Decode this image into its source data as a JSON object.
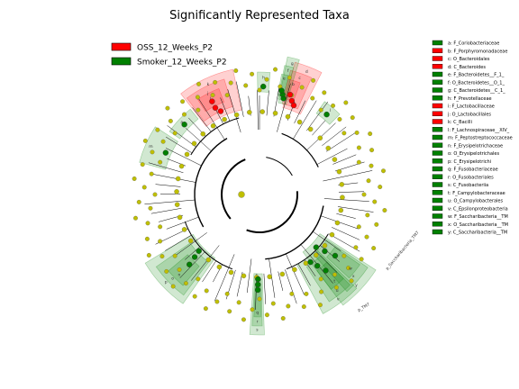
{
  "chart_data": {
    "type": "cladogram",
    "title": "Significantly Represented Taxa",
    "groups": [
      {
        "name": "OSS_12_Weeks_P2",
        "color": "#ff0000"
      },
      {
        "name": "Smoker_12_Weeks_P2",
        "color": "#008000"
      }
    ],
    "neutral_node_color": "#bfbf00",
    "clades": [
      {
        "letter": "a",
        "label": "a: F_Coriobacteriaceae",
        "group": "Smoker_12_Weeks_P2"
      },
      {
        "letter": "b",
        "label": "b: F_Porphyromonadaceae",
        "group": "OSS_12_Weeks_P2"
      },
      {
        "letter": "c",
        "label": "c: O_Bacteroidales",
        "group": "OSS_12_Weeks_P2"
      },
      {
        "letter": "d",
        "label": "d: C_Bacteroides",
        "group": "OSS_12_Weeks_P2"
      },
      {
        "letter": "e",
        "label": "e: F_Bacteroidetes__F_1_",
        "group": "Smoker_12_Weeks_P2"
      },
      {
        "letter": "f",
        "label": "f: O_Bacteroidetes__O_1_",
        "group": "Smoker_12_Weeks_P2"
      },
      {
        "letter": "g",
        "label": "g: C_Bacteroidetes__C_1_",
        "group": "Smoker_12_Weeks_P2"
      },
      {
        "letter": "h",
        "label": "h: F_Prevotellaceae",
        "group": "Smoker_12_Weeks_P2"
      },
      {
        "letter": "i",
        "label": "i: F_Lactobacillaceae",
        "group": "OSS_12_Weeks_P2"
      },
      {
        "letter": "j",
        "label": "j: O_Lactobacillales",
        "group": "OSS_12_Weeks_P2"
      },
      {
        "letter": "k",
        "label": "k: C_Bacilli",
        "group": "OSS_12_Weeks_P2"
      },
      {
        "letter": "l",
        "label": "l: F_Lachnospiraceae__XIV_",
        "group": "Smoker_12_Weeks_P2"
      },
      {
        "letter": "m",
        "label": "m: F_Peptostreptococcaceae",
        "group": "Smoker_12_Weeks_P2"
      },
      {
        "letter": "n",
        "label": "n: F_Erysipelotrichaceae",
        "group": "Smoker_12_Weeks_P2"
      },
      {
        "letter": "o",
        "label": "o: O_Erysipelotrichales",
        "group": "Smoker_12_Weeks_P2"
      },
      {
        "letter": "p",
        "label": "p: C_Erysipelotrichi",
        "group": "Smoker_12_Weeks_P2"
      },
      {
        "letter": "q",
        "label": "q: F_Fusobacteriaceae",
        "group": "Smoker_12_Weeks_P2"
      },
      {
        "letter": "r",
        "label": "r: O_Fusobacteriales",
        "group": "Smoker_12_Weeks_P2"
      },
      {
        "letter": "s",
        "label": "s: C_Fusobacteriia",
        "group": "Smoker_12_Weeks_P2"
      },
      {
        "letter": "t",
        "label": "t: F_Campylobacteraceae",
        "group": "Smoker_12_Weeks_P2"
      },
      {
        "letter": "u",
        "label": "u: O_Campylobacterales",
        "group": "Smoker_12_Weeks_P2"
      },
      {
        "letter": "v",
        "label": "v: C_Epsilonproteobacteria",
        "group": "Smoker_12_Weeks_P2"
      },
      {
        "letter": "w",
        "label": "w: F_Saccharibacteria__TM",
        "group": "Smoker_12_Weeks_P2"
      },
      {
        "letter": "x",
        "label": "x: O_Saccharibacteria__TM",
        "group": "Smoker_12_Weeks_P2"
      },
      {
        "letter": "y",
        "label": "y: C_Saccharibacteria__TM",
        "group": "Smoker_12_Weeks_P2"
      }
    ],
    "phylum_labels": [
      "p_Saccharibacteria_TM7",
      "p_TM7"
    ]
  }
}
